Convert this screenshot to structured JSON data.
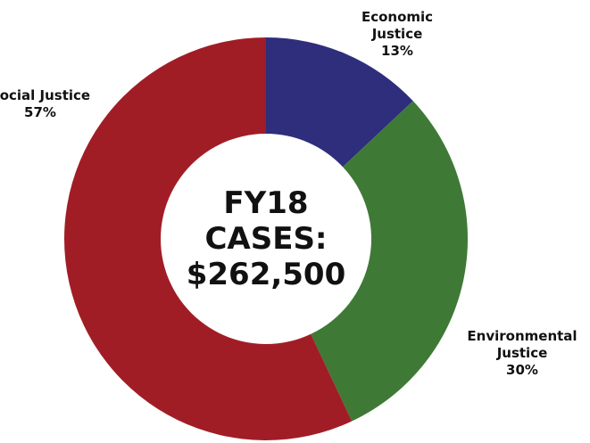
{
  "chart_data": {
    "type": "pie",
    "center_label": "FY18 CASES: $262,500",
    "categories": [
      "Economic Justice",
      "Environmental Justice",
      "Social Justice"
    ],
    "values": [
      13,
      30,
      57
    ],
    "value_labels": [
      "13%",
      "30%",
      "57%"
    ],
    "colors": [
      "#2e2e7c",
      "#3e7a36",
      "#a11d26"
    ]
  }
}
